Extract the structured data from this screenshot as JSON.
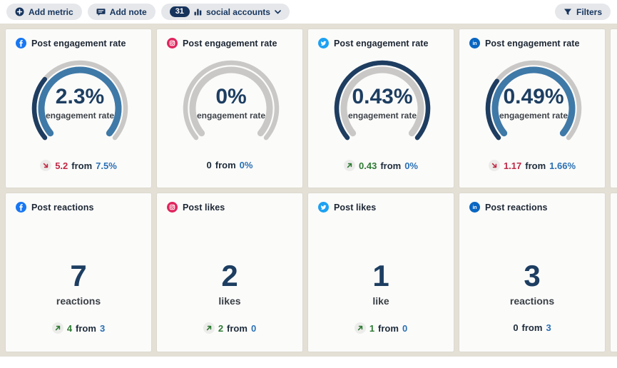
{
  "toolbar": {
    "add_metric_label": "Add metric",
    "add_note_label": "Add note",
    "accounts_count": "31",
    "accounts_label": "social accounts",
    "filters_label": "Filters"
  },
  "labels": {
    "from": "from"
  },
  "colors": {
    "page_bg": "#ffffff",
    "panel_bg": "#e4e0d6",
    "card_bg": "#fbfbfa",
    "navy_text": "#1d3e61",
    "title_text": "#1c2633",
    "gauge_current": "#1e3d60",
    "gauge_previous": "#3e79a8",
    "gauge_track": "#c9c8c6",
    "positive_green": "#2e7b33",
    "negative_red": "#c02945",
    "link_blue": "#2a70b4",
    "facebook": "#1877f2",
    "instagram": "#e0265e",
    "twitter": "#1da1f2",
    "linkedin": "#0a66c2"
  },
  "chart_data": [
    {
      "type": "gauge",
      "network": "facebook",
      "title": "Post engagement rate",
      "current": 2.3,
      "previous": 7.5,
      "unit": "%"
    },
    {
      "type": "gauge",
      "network": "instagram",
      "title": "Post engagement rate",
      "current": 0,
      "previous": 0,
      "unit": "%"
    },
    {
      "type": "gauge",
      "network": "twitter",
      "title": "Post engagement rate",
      "current": 0.43,
      "previous": 0,
      "unit": "%"
    },
    {
      "type": "gauge",
      "network": "linkedin",
      "title": "Post engagement rate",
      "current": 0.49,
      "previous": 1.66,
      "unit": "%"
    },
    {
      "type": "number",
      "network": "facebook",
      "title": "Post reactions",
      "current": 7,
      "previous": 3
    },
    {
      "type": "number",
      "network": "instagram",
      "title": "Post likes",
      "current": 2,
      "previous": 0
    },
    {
      "type": "number",
      "network": "twitter",
      "title": "Post likes",
      "current": 1,
      "previous": 0
    },
    {
      "type": "number",
      "network": "linkedin",
      "title": "Post reactions",
      "current": 3,
      "previous": 3
    }
  ],
  "cards": [
    {
      "kind": "gauge",
      "network": "facebook",
      "title": "Post engagement rate",
      "value": "2.3%",
      "value_label": "engagement rate",
      "current": 2.3,
      "previous": 7.5,
      "delta": {
        "direction": "down",
        "change": "5.2",
        "previous": "7.5%"
      }
    },
    {
      "kind": "gauge",
      "network": "instagram",
      "title": "Post engagement rate",
      "value": "0%",
      "value_label": "engagement rate",
      "current": 0,
      "previous": 0,
      "delta": {
        "direction": "none",
        "change": "0",
        "previous": "0%"
      }
    },
    {
      "kind": "gauge",
      "network": "twitter",
      "title": "Post engagement rate",
      "value": "0.43%",
      "value_label": "engagement rate",
      "current": 0.43,
      "previous": 0,
      "delta": {
        "direction": "up",
        "change": "0.43",
        "previous": "0%"
      }
    },
    {
      "kind": "gauge",
      "network": "linkedin",
      "title": "Post engagement rate",
      "value": "0.49%",
      "value_label": "engagement rate",
      "current": 0.49,
      "previous": 1.66,
      "delta": {
        "direction": "down",
        "change": "1.17",
        "previous": "1.66%"
      }
    },
    {
      "kind": "number",
      "network": "facebook",
      "title": "Post reactions",
      "value": "7",
      "value_label": "reactions",
      "delta": {
        "direction": "up",
        "change": "4",
        "previous": "3"
      }
    },
    {
      "kind": "number",
      "network": "instagram",
      "title": "Post likes",
      "value": "2",
      "value_label": "likes",
      "delta": {
        "direction": "up",
        "change": "2",
        "previous": "0"
      }
    },
    {
      "kind": "number",
      "network": "twitter",
      "title": "Post likes",
      "value": "1",
      "value_label": "like",
      "delta": {
        "direction": "up",
        "change": "1",
        "previous": "0"
      }
    },
    {
      "kind": "number",
      "network": "linkedin",
      "title": "Post reactions",
      "value": "3",
      "value_label": "reactions",
      "delta": {
        "direction": "none",
        "change": "0",
        "previous": "3"
      }
    }
  ],
  "overflow_column": {
    "present": true
  }
}
